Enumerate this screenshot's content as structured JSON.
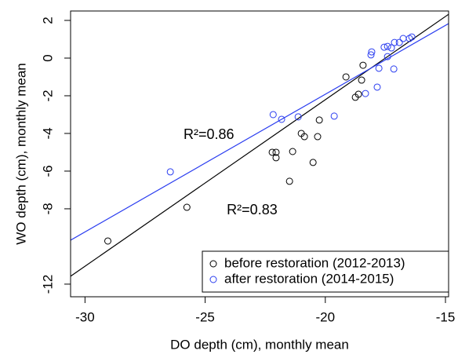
{
  "chart_data": {
    "type": "scatter",
    "x_label": "DO depth (cm), monthly mean",
    "y_label": "WO depth (cm), monthly mean",
    "xlim": [
      -30.6,
      -14.87
    ],
    "ylim": [
      -12.67,
      2.5
    ],
    "xticks": [
      -30,
      -25,
      -20,
      -15
    ],
    "yticks": [
      -12,
      -8,
      -6,
      -4,
      -2,
      0,
      2
    ],
    "legend": "bottom-right",
    "series": [
      {
        "name": "before restoration (2012-2013)",
        "color": "#000000",
        "x": [
          -29.05,
          -25.76,
          -22.21,
          -22.05,
          -22.05,
          -21.49,
          -21.36,
          -21.0,
          -20.87,
          -20.51,
          -20.32,
          -20.25,
          -19.14,
          -18.75,
          -18.62,
          -18.49,
          -18.43
        ],
        "y": [
          -9.71,
          -7.92,
          -5.0,
          -5.0,
          -5.29,
          -6.54,
          -4.96,
          -4.0,
          -4.17,
          -5.54,
          -4.17,
          -3.29,
          -1.0,
          -2.08,
          -1.92,
          -1.17,
          -0.38
        ]
      },
      {
        "name": "after restoration (2014-2015)",
        "color": "#2a3df0",
        "x": [
          -26.45,
          -22.17,
          -21.82,
          -21.13,
          -19.63,
          -18.33,
          -18.1,
          -18.07,
          -17.84,
          -17.77,
          -17.55,
          -17.41,
          -17.41,
          -17.12,
          -17.15,
          -17.25,
          -16.92,
          -16.76,
          -16.5,
          -16.4
        ],
        "y": [
          -6.04,
          -3.0,
          -3.25,
          -3.12,
          -3.08,
          -1.88,
          0.17,
          0.33,
          -1.54,
          -0.54,
          0.58,
          0.62,
          0.08,
          0.83,
          -0.58,
          0.54,
          0.83,
          1.04,
          1.04,
          1.12
        ]
      }
    ],
    "fits": [
      {
        "color": "#000000",
        "slope": 0.884,
        "intercept": 15.47,
        "label": "R²=0.83",
        "label_x": -24.1,
        "label_y": -8.1
      },
      {
        "color": "#2a3df0",
        "slope": 0.731,
        "intercept": 12.7,
        "label": "R²=0.86",
        "label_x": -25.9,
        "label_y": -4.1
      }
    ]
  }
}
